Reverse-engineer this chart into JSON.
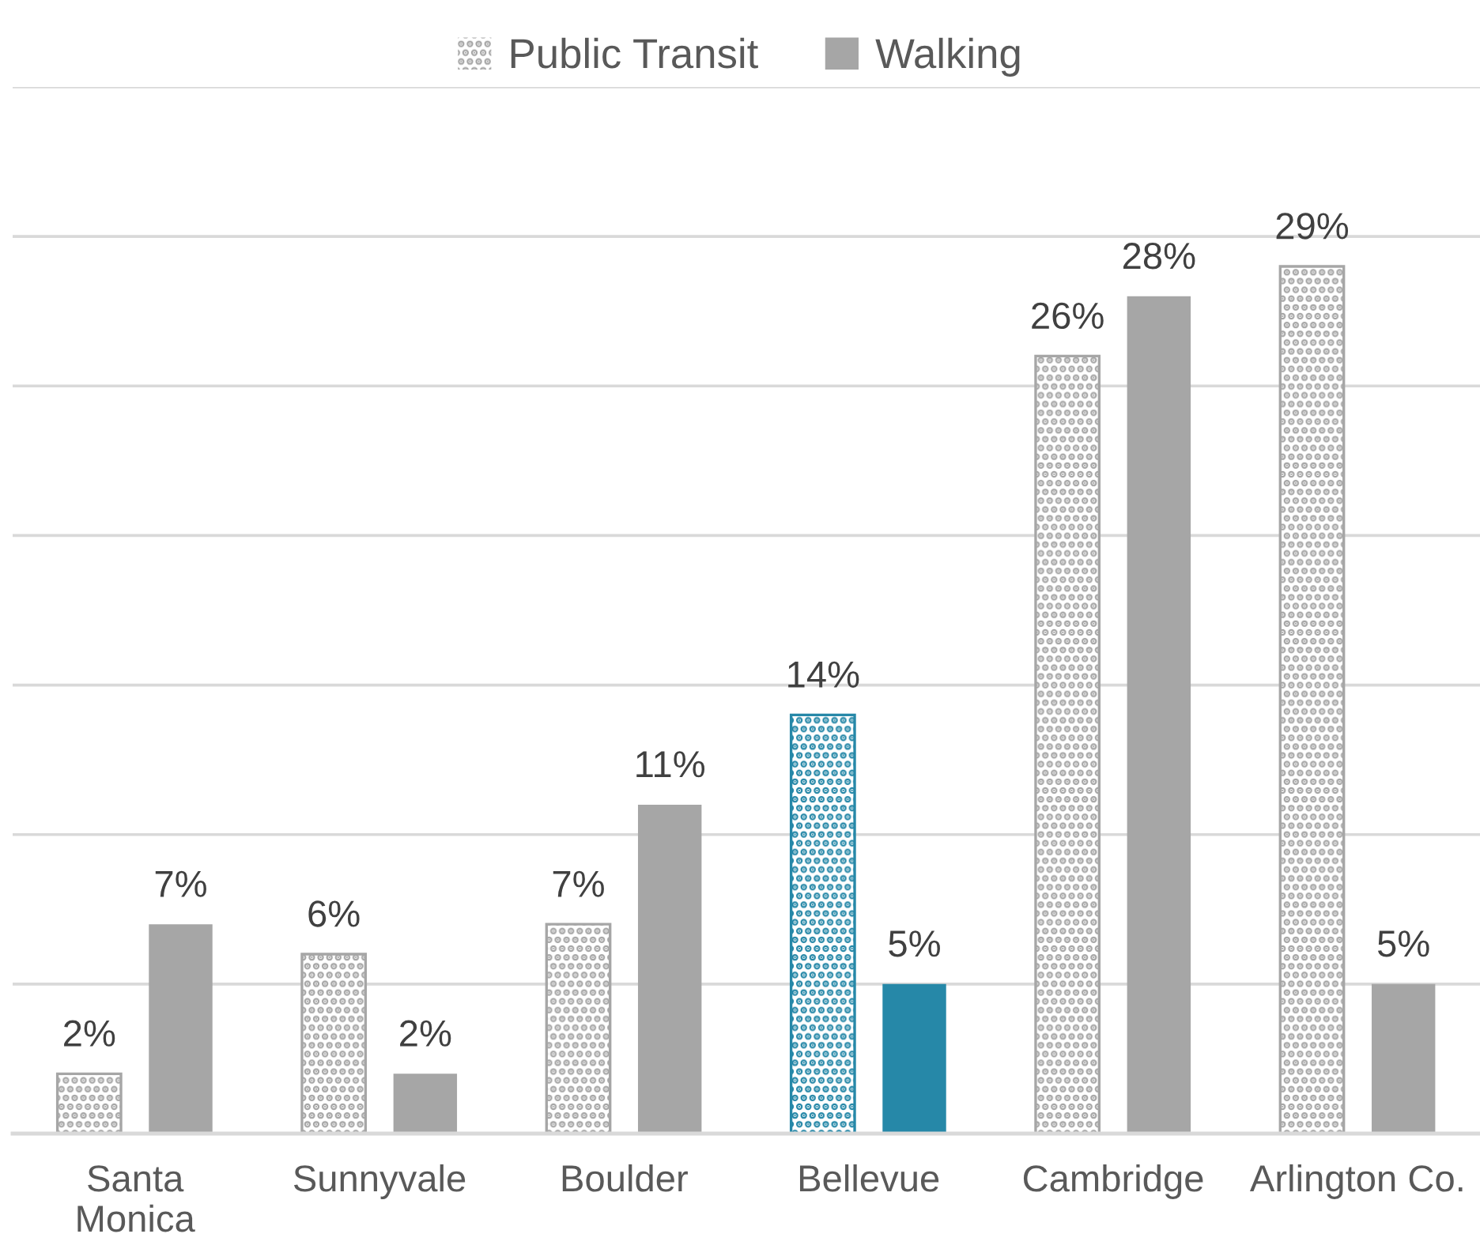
{
  "chart_data": {
    "type": "bar",
    "categories": [
      "Santa\nMonica",
      "Sunnyvale",
      "Boulder",
      "Bellevue",
      "Cambridge",
      "Arlington Co."
    ],
    "series": [
      {
        "name": "Public Transit",
        "color": "#a6a6a6",
        "colors": [
          "#a6a6a6",
          "#a6a6a6",
          "#a6a6a6",
          "#2688a8",
          "#a6a6a6",
          "#a6a6a6"
        ],
        "values": [
          2,
          6,
          7,
          14,
          26,
          29
        ],
        "value_labels": [
          "2%",
          "6%",
          "7%",
          "14%",
          "26%",
          "29%"
        ]
      },
      {
        "name": "Walking",
        "color": "#a6a6a6",
        "colors": [
          "#a6a6a6",
          "#a6a6a6",
          "#a6a6a6",
          "#2688a8",
          "#a6a6a6",
          "#a6a6a6"
        ],
        "values": [
          7,
          2,
          11,
          5,
          28,
          5
        ],
        "value_labels": [
          "7%",
          "2%",
          "11%",
          "5%",
          "28%",
          "5%"
        ]
      }
    ],
    "ylim": [
      0,
      35
    ],
    "yticks": [
      {
        "value": 0,
        "label": null
      },
      {
        "value": 5,
        "label": null
      },
      {
        "value": 10,
        "label": null
      },
      {
        "value": 15,
        "label": null
      },
      {
        "value": 20,
        "label": null
      },
      {
        "value": 25,
        "label": null
      },
      {
        "value": 30,
        "label": null
      },
      {
        "value": 35,
        "label": null
      }
    ],
    "grid": "y",
    "legend": "top",
    "tick_labels": "x"
  }
}
